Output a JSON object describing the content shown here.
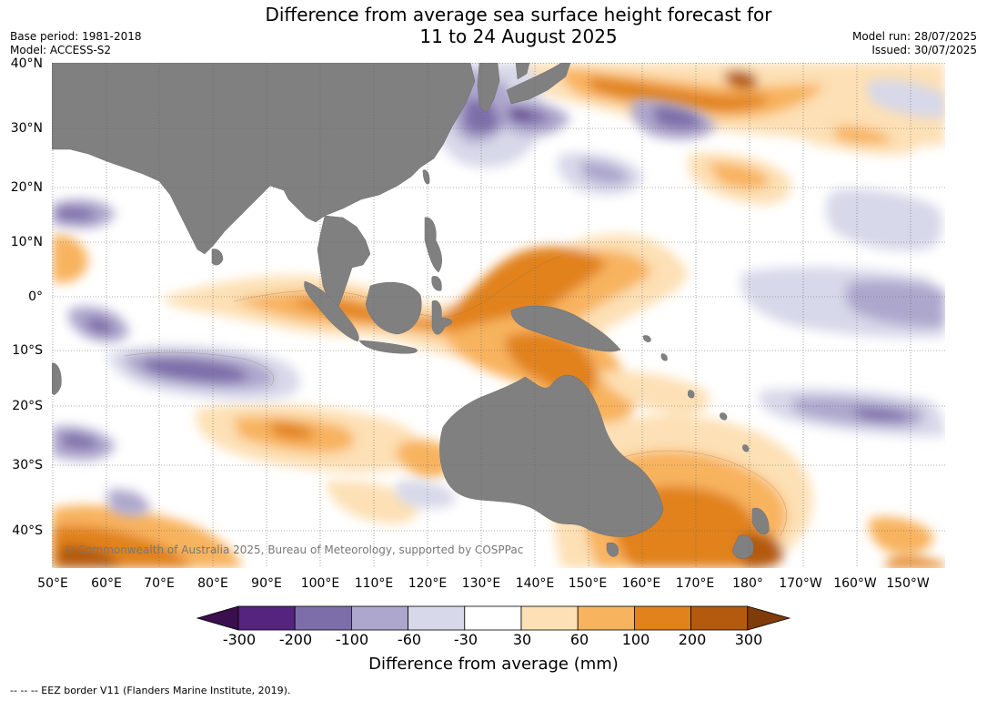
{
  "title": {
    "line1": "Difference from average sea surface height forecast for",
    "line2": "11 to 24 August 2025"
  },
  "meta": {
    "base_period": "Base period: 1981-2018",
    "model": "Model: ACCESS-S2",
    "model_run": "Model run: 28/07/2025",
    "issued": "Issued: 30/07/2025"
  },
  "map": {
    "lat_labels": [
      "40°N",
      "30°N",
      "20°N",
      "10°N",
      "0°",
      "10°S",
      "20°S",
      "30°S",
      "40°S"
    ],
    "lon_labels": [
      "50°E",
      "60°E",
      "70°E",
      "80°E",
      "90°E",
      "100°E",
      "110°E",
      "120°E",
      "130°E",
      "140°E",
      "150°E",
      "160°E",
      "170°E",
      "180°",
      "170°W",
      "160°W",
      "150°W"
    ],
    "land_color": "#808080",
    "copyright": "© Commonwealth of Australia 2025, Bureau of Meteorology, supported by COSPPac"
  },
  "colorbar": {
    "title": "Difference from average (mm)",
    "ticks": [
      "-300",
      "-200",
      "-100",
      "-60",
      "-30",
      "30",
      "60",
      "100",
      "200",
      "300"
    ],
    "colors": [
      "#3b0f4e",
      "#55247f",
      "#7d6ea9",
      "#aea7cd",
      "#d7d8e9",
      "#ffffff",
      "#fde0b5",
      "#f8b35e",
      "#e1821c",
      "#b45a0f",
      "#7f3b08"
    ]
  },
  "footer": "--  --  -- EEZ border V11 (Flanders Marine Institute, 2019)."
}
